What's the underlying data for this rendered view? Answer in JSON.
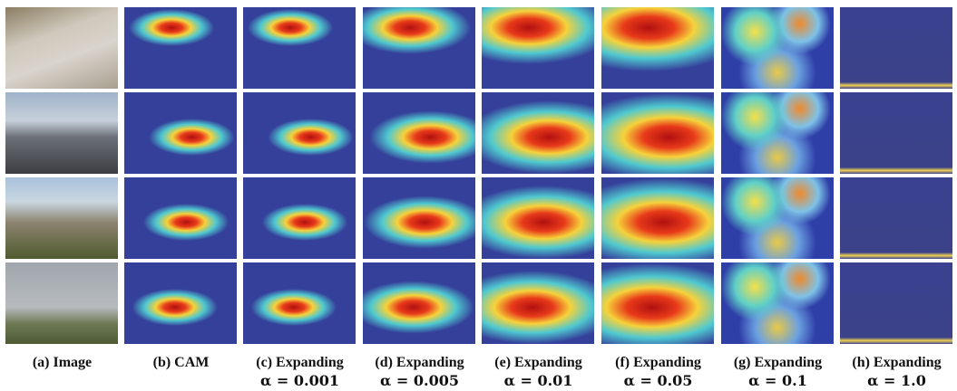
{
  "captions": [
    {
      "label": "(a) Image"
    },
    {
      "label": "(b) CAM"
    },
    {
      "label": "(c) Expanding",
      "alpha": "α = 0.001"
    },
    {
      "label": "(d) Expanding",
      "alpha": "α = 0.005"
    },
    {
      "label": "(e) Expanding",
      "alpha": "α = 0.01"
    },
    {
      "label": "(f) Expanding",
      "alpha": "α = 0.05"
    },
    {
      "label": "(g) Expanding",
      "alpha": "α = 0.1"
    },
    {
      "label": "(h) Expanding",
      "alpha": "α = 1.0"
    }
  ]
}
